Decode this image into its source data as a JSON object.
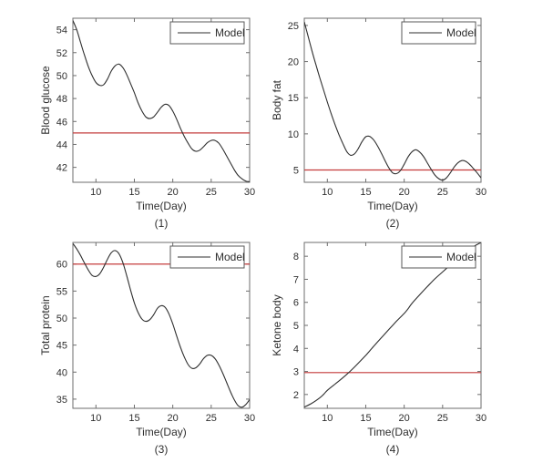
{
  "figure": {
    "background": "#ffffff",
    "colors": {
      "model_line": "#2f2f2f",
      "threshold_line": "#c43c3c",
      "axis": "#6e6e6e",
      "text": "#2e2e2e",
      "legend_border": "#5a5a5a",
      "legend_fill": "#ffffff"
    }
  },
  "chart_data": [
    {
      "type": "line",
      "title": "",
      "xlabel": "Time(Day)",
      "ylabel": "Blood glucose",
      "caption": "(1)",
      "xlim": [
        7,
        30
      ],
      "ylim": [
        40.7,
        55
      ],
      "xticks": [
        10,
        15,
        20,
        25,
        30
      ],
      "yticks": [
        42,
        44,
        46,
        48,
        50,
        52,
        54
      ],
      "grid": false,
      "legend": {
        "label": "Model",
        "position": "top-right"
      },
      "threshold": 45,
      "series": [
        {
          "name": "Model",
          "x": [
            7,
            7.5,
            8,
            8.5,
            9,
            9.5,
            10,
            10.5,
            11,
            11.5,
            12,
            12.5,
            13,
            13.5,
            14,
            14.5,
            15,
            15.5,
            16,
            16.5,
            17,
            17.5,
            18,
            18.5,
            19,
            19.5,
            20,
            20.5,
            21,
            21.5,
            22,
            22.5,
            23,
            23.5,
            24,
            24.5,
            25,
            25.5,
            26,
            26.5,
            27,
            27.5,
            28,
            28.5,
            29,
            29.5,
            30
          ],
          "y": [
            54.8,
            54.0,
            52.9,
            51.8,
            50.8,
            50.0,
            49.4,
            49.15,
            49.2,
            49.7,
            50.4,
            50.85,
            51.0,
            50.7,
            50.1,
            49.3,
            48.5,
            47.6,
            46.9,
            46.4,
            46.25,
            46.4,
            46.8,
            47.25,
            47.5,
            47.4,
            46.9,
            46.2,
            45.4,
            44.7,
            44.1,
            43.6,
            43.4,
            43.5,
            43.8,
            44.15,
            44.35,
            44.35,
            44.1,
            43.6,
            43.0,
            42.4,
            41.8,
            41.3,
            41.0,
            40.8,
            40.75
          ]
        }
      ]
    },
    {
      "type": "line",
      "title": "",
      "xlabel": "Time(Day)",
      "ylabel": "Body fat",
      "caption": "(2)",
      "xlim": [
        7,
        30
      ],
      "ylim": [
        3.3,
        26
      ],
      "xticks": [
        10,
        15,
        20,
        25,
        30
      ],
      "yticks": [
        5,
        10,
        15,
        20,
        25
      ],
      "grid": false,
      "legend": {
        "label": "Model",
        "position": "top-right"
      },
      "threshold": 5,
      "series": [
        {
          "name": "Model",
          "x": [
            7,
            7.5,
            8,
            8.5,
            9,
            9.5,
            10,
            10.5,
            11,
            11.5,
            12,
            12.5,
            13,
            13.5,
            14,
            14.5,
            15,
            15.5,
            16,
            16.5,
            17,
            17.5,
            18,
            18.5,
            19,
            19.5,
            20,
            20.5,
            21,
            21.5,
            22,
            22.5,
            23,
            23.5,
            24,
            24.5,
            25,
            25.5,
            26,
            26.5,
            27,
            27.5,
            28,
            28.5,
            29,
            29.5,
            30
          ],
          "y": [
            25.5,
            23.5,
            21.5,
            19.6,
            17.8,
            16.1,
            14.4,
            12.8,
            11.3,
            9.9,
            8.7,
            7.6,
            7.05,
            7.2,
            7.9,
            8.9,
            9.6,
            9.65,
            9.2,
            8.4,
            7.4,
            6.3,
            5.3,
            4.6,
            4.5,
            4.9,
            5.8,
            6.8,
            7.5,
            7.8,
            7.5,
            6.9,
            6.0,
            5.1,
            4.3,
            3.8,
            3.6,
            3.9,
            4.6,
            5.4,
            6.0,
            6.3,
            6.2,
            5.8,
            5.2,
            4.6,
            3.9
          ]
        }
      ]
    },
    {
      "type": "line",
      "title": "",
      "xlabel": "Time(Day)",
      "ylabel": "Total protein",
      "caption": "(3)",
      "xlim": [
        7,
        30
      ],
      "ylim": [
        33.3,
        64
      ],
      "xticks": [
        10,
        15,
        20,
        25,
        30
      ],
      "yticks": [
        35,
        40,
        45,
        50,
        55,
        60
      ],
      "grid": false,
      "legend": {
        "label": "Model",
        "position": "top-right"
      },
      "threshold": 60,
      "series": [
        {
          "name": "Model",
          "x": [
            7,
            7.5,
            8,
            8.5,
            9,
            9.5,
            10,
            10.5,
            11,
            11.5,
            12,
            12.5,
            13,
            13.5,
            14,
            14.5,
            15,
            15.5,
            16,
            16.5,
            17,
            17.5,
            18,
            18.5,
            19,
            19.5,
            20,
            20.5,
            21,
            21.5,
            22,
            22.5,
            23,
            23.5,
            24,
            24.5,
            25,
            25.5,
            26,
            26.5,
            27,
            27.5,
            28,
            28.5,
            29,
            29.5,
            30
          ],
          "y": [
            63.8,
            62.8,
            61.6,
            60.2,
            58.9,
            57.9,
            57.7,
            58.2,
            59.4,
            60.9,
            62.1,
            62.5,
            61.9,
            60.3,
            57.9,
            55.2,
            52.8,
            51.0,
            49.8,
            49.4,
            49.7,
            50.6,
            51.8,
            52.3,
            52.0,
            50.8,
            48.9,
            46.7,
            44.6,
            42.8,
            41.4,
            40.7,
            40.8,
            41.5,
            42.5,
            43.1,
            43.1,
            42.5,
            41.3,
            39.8,
            38.1,
            36.4,
            34.9,
            33.8,
            33.5,
            34.0,
            34.9
          ]
        }
      ]
    },
    {
      "type": "line",
      "title": "",
      "xlabel": "Time(Day)",
      "ylabel": "Ketone body",
      "caption": "(4)",
      "xlim": [
        7,
        30
      ],
      "ylim": [
        1.4,
        8.6
      ],
      "xticks": [
        10,
        15,
        20,
        25,
        30
      ],
      "yticks": [
        2,
        3,
        4,
        5,
        6,
        7,
        8
      ],
      "grid": false,
      "legend": {
        "label": "Model",
        "position": "top-right"
      },
      "threshold": 2.95,
      "series": [
        {
          "name": "Model",
          "x": [
            7,
            8,
            9,
            9.5,
            10,
            11,
            12,
            13,
            14,
            15,
            16,
            17,
            18,
            19,
            20,
            20.5,
            21,
            22,
            23,
            24,
            25,
            26,
            27,
            28,
            29,
            30
          ],
          "y": [
            1.45,
            1.62,
            1.85,
            2.0,
            2.18,
            2.45,
            2.72,
            3.02,
            3.35,
            3.7,
            4.08,
            4.45,
            4.82,
            5.18,
            5.52,
            5.72,
            5.95,
            6.32,
            6.68,
            7.02,
            7.32,
            7.62,
            7.92,
            8.18,
            8.42,
            8.6
          ]
        }
      ]
    }
  ]
}
